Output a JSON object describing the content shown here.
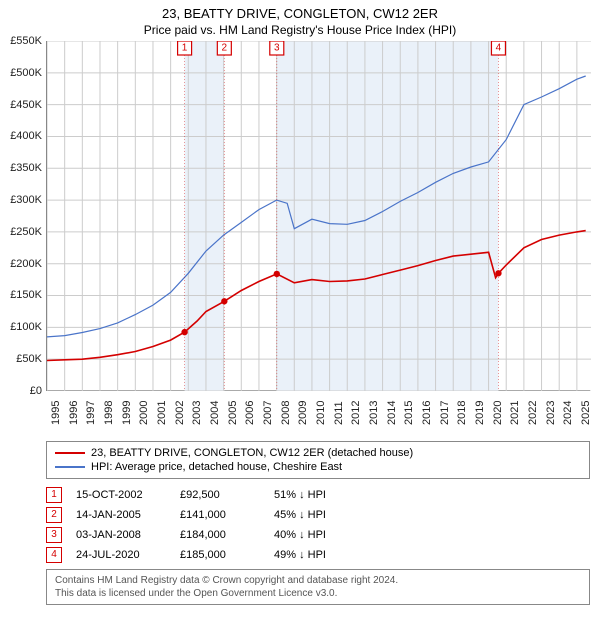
{
  "title_line1": "23, BEATTY DRIVE, CONGLETON, CW12 2ER",
  "title_line2": "Price paid vs. HM Land Registry's House Price Index (HPI)",
  "chart": {
    "type": "line",
    "background_color": "#ffffff",
    "grid_color": "#cccccc",
    "shaded_band_color": "#eaf1f9",
    "x_start_year": 1995,
    "x_end_year": 2025.8,
    "x_tick_years": [
      1995,
      1996,
      1997,
      1998,
      1999,
      2000,
      2001,
      2002,
      2003,
      2004,
      2005,
      2006,
      2007,
      2008,
      2009,
      2010,
      2011,
      2012,
      2013,
      2014,
      2015,
      2016,
      2017,
      2018,
      2019,
      2020,
      2021,
      2022,
      2023,
      2024,
      2025
    ],
    "y_min": 0,
    "y_max": 550,
    "y_tick_step": 50,
    "y_tick_labels": [
      "£0",
      "£50K",
      "£100K",
      "£150K",
      "£200K",
      "£250K",
      "£300K",
      "£350K",
      "£400K",
      "£450K",
      "£500K",
      "£550K"
    ],
    "shaded_bands": [
      {
        "from": 2002.79,
        "to": 2005.04
      },
      {
        "from": 2008.01,
        "to": 2020.56
      }
    ],
    "series": [
      {
        "name": "price_paid",
        "label": "23, BEATTY DRIVE, CONGLETON, CW12 2ER (detached house)",
        "color": "#d40000",
        "width": 1.6,
        "points": [
          [
            1995,
            48
          ],
          [
            1996,
            49
          ],
          [
            1997,
            50
          ],
          [
            1998,
            53
          ],
          [
            1999,
            57
          ],
          [
            2000,
            62
          ],
          [
            2001,
            70
          ],
          [
            2002,
            80
          ],
          [
            2002.79,
            92.5
          ],
          [
            2003.5,
            110
          ],
          [
            2004,
            125
          ],
          [
            2005.04,
            141
          ],
          [
            2006,
            158
          ],
          [
            2007,
            172
          ],
          [
            2008.01,
            184
          ],
          [
            2009,
            170
          ],
          [
            2010,
            175
          ],
          [
            2011,
            172
          ],
          [
            2012,
            173
          ],
          [
            2013,
            176
          ],
          [
            2014,
            183
          ],
          [
            2015,
            190
          ],
          [
            2016,
            197
          ],
          [
            2017,
            205
          ],
          [
            2018,
            212
          ],
          [
            2019,
            215
          ],
          [
            2020,
            218
          ],
          [
            2020.4,
            178
          ],
          [
            2020.56,
            185
          ],
          [
            2021,
            198
          ],
          [
            2022,
            225
          ],
          [
            2023,
            238
          ],
          [
            2024,
            245
          ],
          [
            2025,
            250
          ],
          [
            2025.5,
            252
          ]
        ],
        "sale_points": [
          {
            "year": 2002.79,
            "value": 92.5
          },
          {
            "year": 2005.04,
            "value": 141
          },
          {
            "year": 2008.01,
            "value": 184
          },
          {
            "year": 2020.56,
            "value": 185
          }
        ]
      },
      {
        "name": "hpi",
        "label": "HPI: Average price, detached house, Cheshire East",
        "color": "#4a74c9",
        "width": 1.2,
        "points": [
          [
            1995,
            85
          ],
          [
            1996,
            87
          ],
          [
            1997,
            92
          ],
          [
            1998,
            98
          ],
          [
            1999,
            107
          ],
          [
            2000,
            120
          ],
          [
            2001,
            135
          ],
          [
            2002,
            155
          ],
          [
            2003,
            185
          ],
          [
            2004,
            220
          ],
          [
            2005,
            245
          ],
          [
            2006,
            265
          ],
          [
            2007,
            285
          ],
          [
            2008,
            300
          ],
          [
            2008.6,
            295
          ],
          [
            2009,
            255
          ],
          [
            2010,
            270
          ],
          [
            2011,
            263
          ],
          [
            2012,
            262
          ],
          [
            2013,
            268
          ],
          [
            2014,
            282
          ],
          [
            2015,
            298
          ],
          [
            2016,
            312
          ],
          [
            2017,
            328
          ],
          [
            2018,
            342
          ],
          [
            2019,
            352
          ],
          [
            2020,
            360
          ],
          [
            2021,
            395
          ],
          [
            2022,
            450
          ],
          [
            2023,
            462
          ],
          [
            2024,
            475
          ],
          [
            2025,
            490
          ],
          [
            2025.5,
            495
          ]
        ]
      }
    ],
    "markers": [
      {
        "n": "1",
        "year": 2002.79,
        "color": "#d40000"
      },
      {
        "n": "2",
        "year": 2005.04,
        "color": "#d40000"
      },
      {
        "n": "3",
        "year": 2008.01,
        "color": "#d40000"
      },
      {
        "n": "4",
        "year": 2020.56,
        "color": "#d40000"
      }
    ]
  },
  "legend": [
    {
      "color": "#d40000",
      "label": "23, BEATTY DRIVE, CONGLETON, CW12 2ER (detached house)"
    },
    {
      "color": "#4a74c9",
      "label": "HPI: Average price, detached house, Cheshire East"
    }
  ],
  "transactions": [
    {
      "n": "1",
      "color": "#d40000",
      "date": "15-OCT-2002",
      "price": "£92,500",
      "diff": "51% ↓ HPI"
    },
    {
      "n": "2",
      "color": "#d40000",
      "date": "14-JAN-2005",
      "price": "£141,000",
      "diff": "45% ↓ HPI"
    },
    {
      "n": "3",
      "color": "#d40000",
      "date": "03-JAN-2008",
      "price": "£184,000",
      "diff": "40% ↓ HPI"
    },
    {
      "n": "4",
      "color": "#d40000",
      "date": "24-JUL-2020",
      "price": "£185,000",
      "diff": "49% ↓ HPI"
    }
  ],
  "footer_line1": "Contains HM Land Registry data © Crown copyright and database right 2024.",
  "footer_line2": "This data is licensed under the Open Government Licence v3.0."
}
